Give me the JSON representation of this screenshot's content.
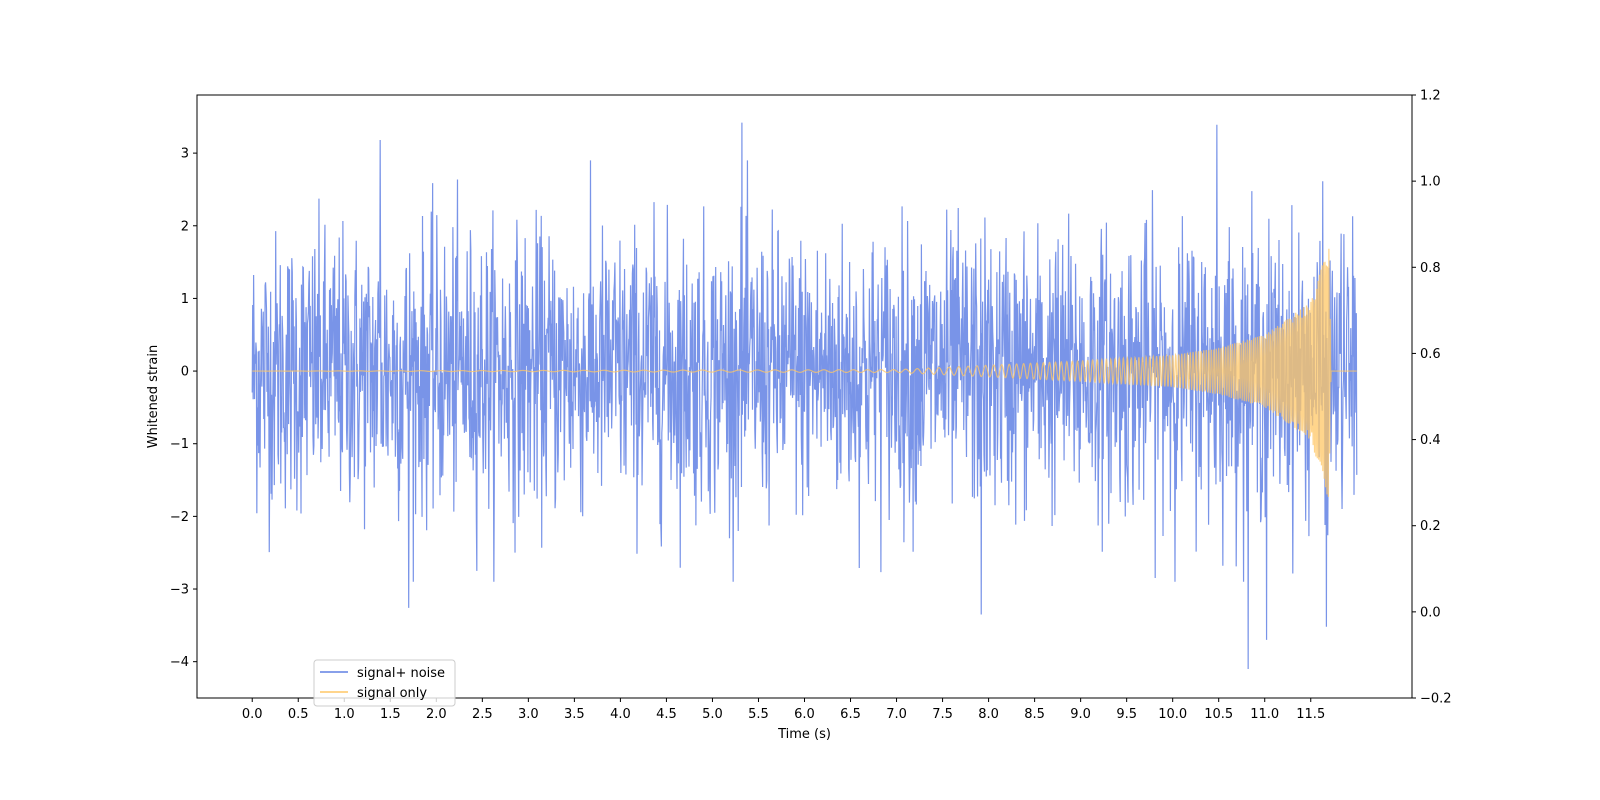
{
  "chart_data": {
    "type": "line",
    "title": "",
    "xlabel": "Time (s)",
    "ylabel": "Whitened strain",
    "xlim": [
      -0.6,
      12.6
    ],
    "ylim": [
      -4.5,
      3.8
    ],
    "y2lim": [
      -0.2,
      1.2
    ],
    "x_ticks": [
      0.0,
      0.5,
      1.0,
      1.5,
      2.0,
      2.5,
      3.0,
      3.5,
      4.0,
      4.5,
      5.0,
      5.5,
      6.0,
      6.5,
      7.0,
      7.5,
      8.0,
      8.5,
      9.0,
      9.5,
      10.0,
      10.5,
      11.0,
      11.5
    ],
    "x_tick_labels": [
      "0.0",
      "0.5",
      "1.0",
      "1.5",
      "2.0",
      "2.5",
      "3.0",
      "3.5",
      "4.0",
      "4.5",
      "5.0",
      "5.5",
      "6.0",
      "6.5",
      "7.0",
      "7.5",
      "8.0",
      "8.5",
      "9.0",
      "9.5",
      "10.0",
      "10.5",
      "11.0",
      "11.5"
    ],
    "y_ticks": [
      3,
      2,
      1,
      0,
      -1,
      -2,
      -3,
      -4
    ],
    "y_tick_labels": [
      "3",
      "2",
      "1",
      "0",
      "−1",
      "−2",
      "−3",
      "−4"
    ],
    "y2_ticks": [
      1.2,
      1.0,
      0.8,
      0.6,
      0.4,
      0.2,
      0.0,
      -0.2
    ],
    "y2_tick_labels": [
      "1.2",
      "1.0",
      "0.8",
      "0.6",
      "0.4",
      "0.2",
      "0.0",
      "−0.2"
    ],
    "grid": false,
    "legend_position": "lower-left",
    "series": [
      {
        "name": "signal+ noise",
        "color": "#6181e4",
        "description": "white noise, amplitude roughly ±2.3 with peaks to about ±3.3",
        "x_range": [
          0.0,
          12.0
        ],
        "noise_envelope": 2.3,
        "notable_peaks": [
          {
            "x": 5.32,
            "y": 3.42
          },
          {
            "x": 10.48,
            "y": 3.39
          },
          {
            "x": 1.39,
            "y": 3.18
          },
          {
            "x": 10.82,
            "y": -4.1
          },
          {
            "x": 11.02,
            "y": -3.7
          },
          {
            "x": 1.7,
            "y": -3.26
          },
          {
            "x": 7.92,
            "y": -3.35
          },
          {
            "x": 11.67,
            "y": -3.52
          }
        ]
      },
      {
        "name": "signal only",
        "color": "#ffc766",
        "description": "chirp: near zero until about 7 s, amplitude grows to about ±1.8 at 11.7 s, then returns to zero",
        "envelope_points": [
          {
            "x": 0.0,
            "y": 0.0
          },
          {
            "x": 7.0,
            "y": 0.02
          },
          {
            "x": 8.0,
            "y": 0.08
          },
          {
            "x": 9.0,
            "y": 0.14
          },
          {
            "x": 10.0,
            "y": 0.22
          },
          {
            "x": 10.5,
            "y": 0.32
          },
          {
            "x": 11.0,
            "y": 0.5
          },
          {
            "x": 11.5,
            "y": 0.95
          },
          {
            "x": 11.7,
            "y": 1.8
          },
          {
            "x": 11.72,
            "y": 0.0
          },
          {
            "x": 12.0,
            "y": 0.0
          }
        ]
      }
    ]
  }
}
